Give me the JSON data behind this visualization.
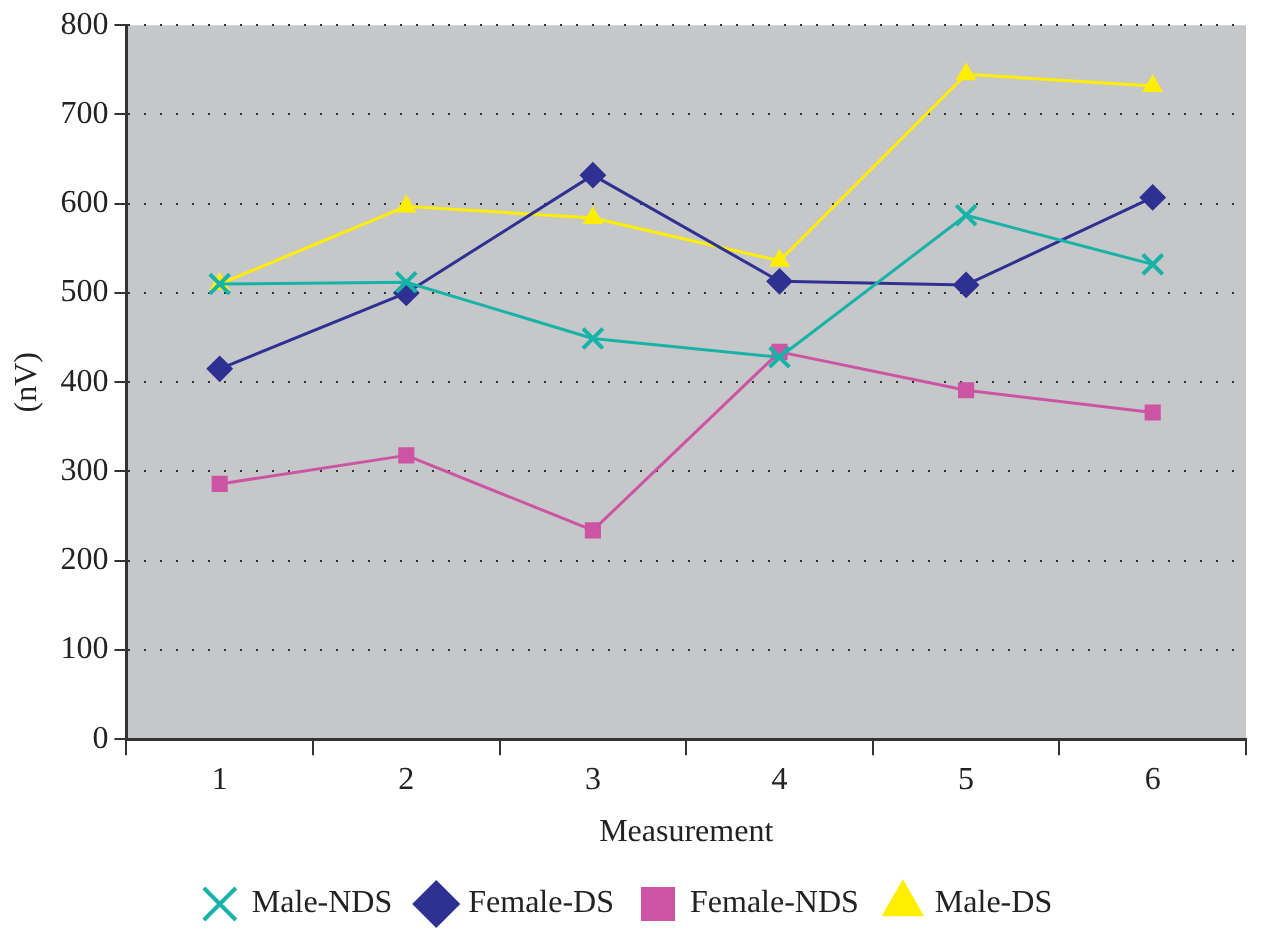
{
  "chart_data": {
    "type": "line",
    "xlabel": "Measurement",
    "ylabel": "(nV)",
    "categories": [
      "1",
      "2",
      "3",
      "4",
      "5",
      "6"
    ],
    "series": [
      {
        "name": "Female-DS",
        "color": "#2e3192",
        "marker": "diamond",
        "values": [
          415,
          500,
          632,
          513,
          509,
          607
        ]
      },
      {
        "name": "Female-NDS",
        "color": "#cc55a3",
        "marker": "square",
        "values": [
          286,
          318,
          234,
          434,
          391,
          366
        ]
      },
      {
        "name": "Male-DS",
        "color": "#ffee00",
        "marker": "triangle",
        "values": [
          510,
          597,
          584,
          536,
          745,
          732
        ]
      },
      {
        "name": "Male-NDS",
        "color": "#17b3a8",
        "marker": "cross",
        "values": [
          510,
          512,
          449,
          428,
          587,
          532
        ]
      }
    ],
    "ylim": [
      0,
      800
    ],
    "yticks": [
      0,
      100,
      200,
      300,
      400,
      500,
      600,
      700,
      800
    ],
    "grid": "y",
    "legend": "bottom"
  }
}
